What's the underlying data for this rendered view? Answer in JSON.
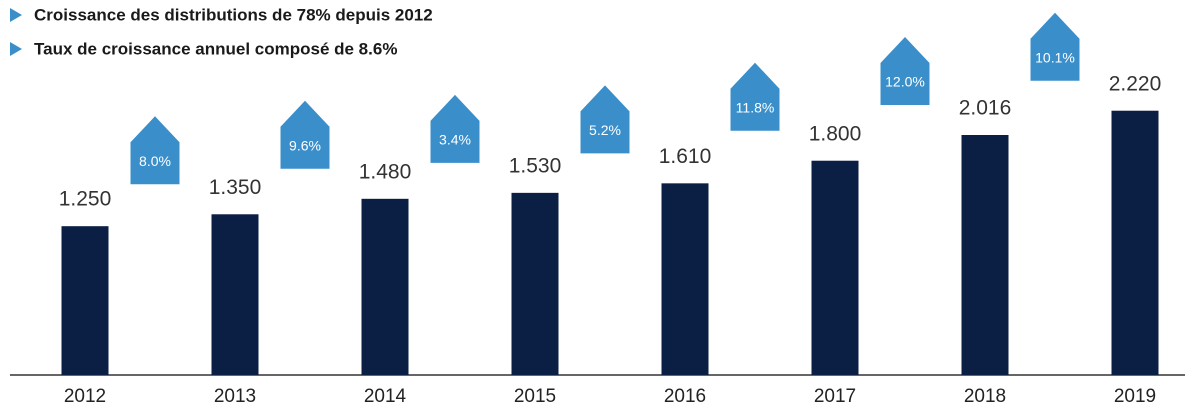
{
  "chart_data": {
    "type": "bar",
    "bullets": [
      "Croissance des distributions de 78% depuis 2012",
      "Taux de croissance annuel composé de 8.6%"
    ],
    "categories": [
      "2012",
      "2013",
      "2014",
      "2015",
      "2016",
      "2017",
      "2018",
      "2019"
    ],
    "values": [
      1.25,
      1.35,
      1.48,
      1.53,
      1.61,
      1.8,
      2.016,
      2.22
    ],
    "value_labels": [
      "1.250",
      "1.350",
      "1.480",
      "1.530",
      "1.610",
      "1.800",
      "2.016",
      "2.220"
    ],
    "growth": {
      "values": [
        8.0,
        9.6,
        3.4,
        5.2,
        11.8,
        12.0,
        10.1
      ],
      "value_labels": [
        "8.0%",
        "9.6%",
        "3.4%",
        "5.2%",
        "11.8%",
        "12.0%",
        "10.1%"
      ],
      "color": "#3a8fcb"
    },
    "color": "#0b1f45",
    "ylim": [
      0,
      3.15
    ]
  }
}
